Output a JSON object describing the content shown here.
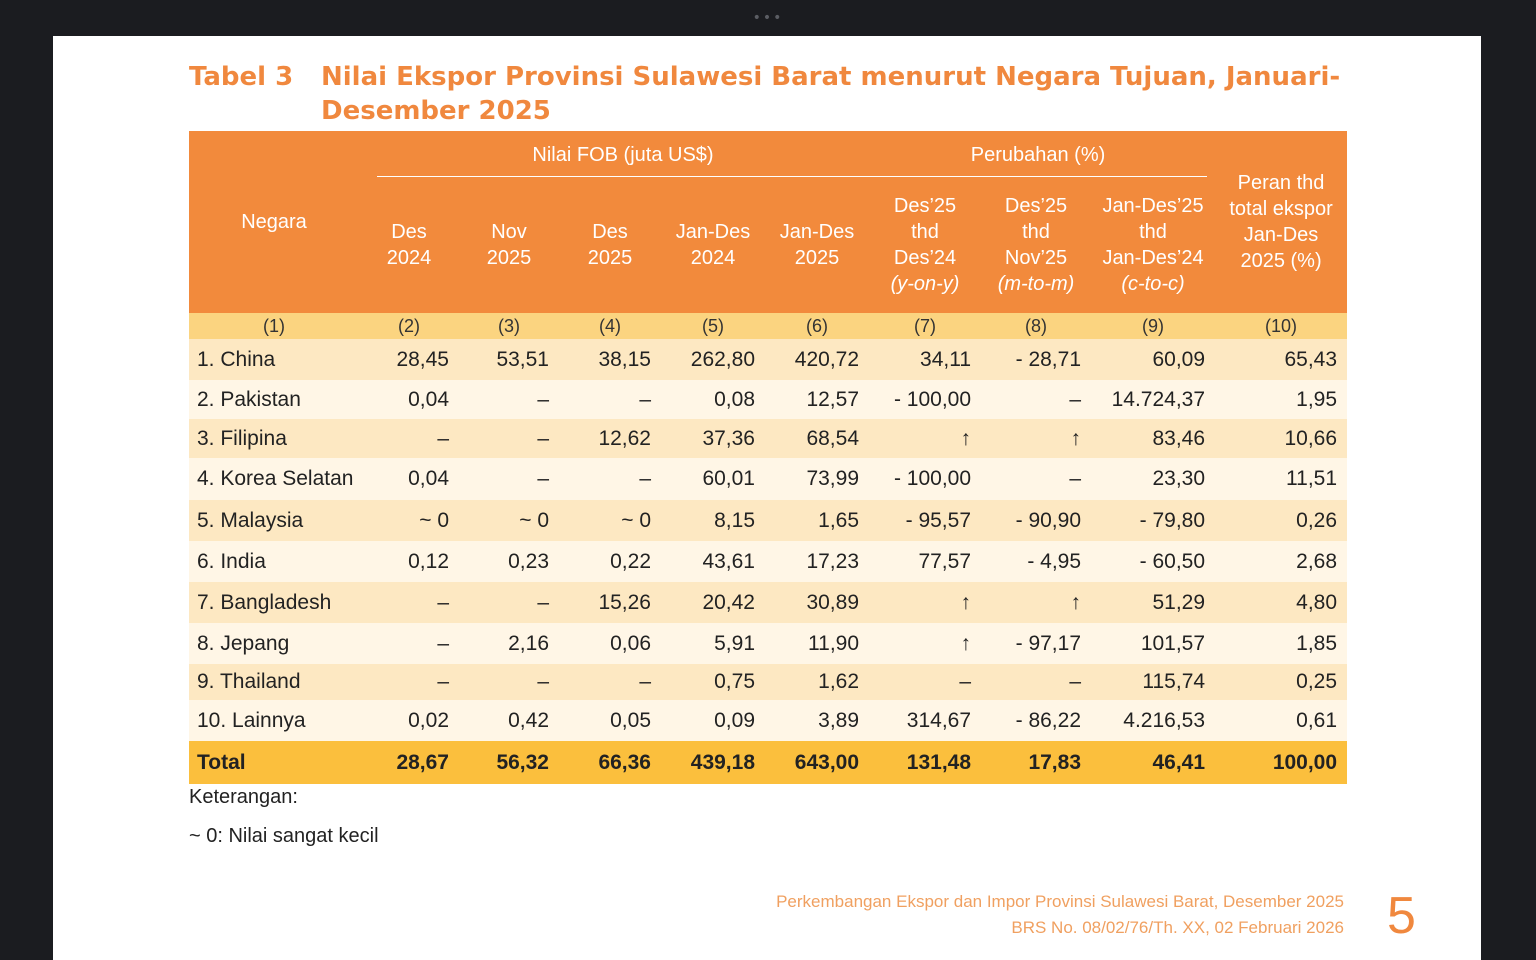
{
  "title": {
    "label": "Tabel 3",
    "text": "Nilai Ekspor Provinsi Sulawesi Barat menurut Negara Tujuan, Januari-Desember 2025"
  },
  "header": {
    "negara": "Negara",
    "group_fob": "Nilai FOB (juta US$)",
    "group_change": "Perubahan (%)",
    "peran": [
      "Peran thd",
      "total ekspor",
      "Jan-Des",
      "2025 (%)"
    ],
    "cols": [
      [
        "Des",
        "2024"
      ],
      [
        "Nov",
        "2025"
      ],
      [
        "Des",
        "2025"
      ],
      [
        "Jan-Des",
        "2024"
      ],
      [
        "Jan-Des",
        "2025"
      ],
      [
        "Des’25",
        "thd",
        "Des’24",
        "(y-on-y)"
      ],
      [
        "Des’25",
        "thd",
        "Nov’25",
        "(m-to-m)"
      ],
      [
        "Jan-Des’25",
        "thd",
        "Jan-Des’24",
        "(c-to-c)"
      ]
    ],
    "numbers": [
      "(1)",
      "(2)",
      "(3)",
      "(4)",
      "(5)",
      "(6)",
      "(7)",
      "(8)",
      "(9)",
      "(10)"
    ]
  },
  "rows": [
    {
      "name": "1. China",
      "values": [
        "28,45",
        "53,51",
        "38,15",
        "262,80",
        "420,72",
        "34,11",
        "- 28,71",
        "60,09",
        "65,43"
      ]
    },
    {
      "name": "2. Pakistan",
      "values": [
        "0,04",
        "–",
        "–",
        "0,08",
        "12,57",
        "- 100,00",
        "–",
        "14.724,37",
        "1,95"
      ]
    },
    {
      "name": "3. Filipina",
      "values": [
        "–",
        "–",
        "12,62",
        "37,36",
        "68,54",
        "↑",
        "↑",
        "83,46",
        "10,66"
      ]
    },
    {
      "name": "4. Korea Selatan",
      "values": [
        "0,04",
        "–",
        "–",
        "60,01",
        "73,99",
        "- 100,00",
        "–",
        "23,30",
        "11,51"
      ]
    },
    {
      "name": "5. Malaysia",
      "values": [
        "~ 0",
        "~ 0",
        "~ 0",
        "8,15",
        "1,65",
        "- 95,57",
        "- 90,90",
        "- 79,80",
        "0,26"
      ]
    },
    {
      "name": "6. India",
      "values": [
        "0,12",
        "0,23",
        "0,22",
        "43,61",
        "17,23",
        "77,57",
        "- 4,95",
        "- 60,50",
        "2,68"
      ]
    },
    {
      "name": "7. Bangladesh",
      "values": [
        "–",
        "–",
        "15,26",
        "20,42",
        "30,89",
        "↑",
        "↑",
        "51,29",
        "4,80"
      ]
    },
    {
      "name": "8. Jepang",
      "values": [
        "–",
        "2,16",
        "0,06",
        "5,91",
        "11,90",
        "↑",
        "- 97,17",
        "101,57",
        "1,85"
      ]
    },
    {
      "name": "9. Thailand",
      "values": [
        "–",
        "–",
        "–",
        "0,75",
        "1,62",
        "–",
        "–",
        "115,74",
        "0,25"
      ]
    },
    {
      "name": "10. Lainnya",
      "values": [
        "0,02",
        "0,42",
        "0,05",
        "0,09",
        "3,89",
        "314,67",
        "- 86,22",
        "4.216,53",
        "0,61"
      ]
    }
  ],
  "total": {
    "name": "Total",
    "values": [
      "28,67",
      "56,32",
      "66,36",
      "439,18",
      "643,00",
      "131,48",
      "17,83",
      "46,41",
      "100,00"
    ]
  },
  "notes": {
    "heading": "Keterangan:",
    "line1": "~ 0: Nilai sangat kecil"
  },
  "footer": {
    "line1": "Perkembangan Ekspor dan Impor Provinsi Sulawesi Barat, Desember 2025",
    "line2": "BRS No. 08/02/76/Th. XX,  02 Februari 2026",
    "page_number": "5"
  }
}
